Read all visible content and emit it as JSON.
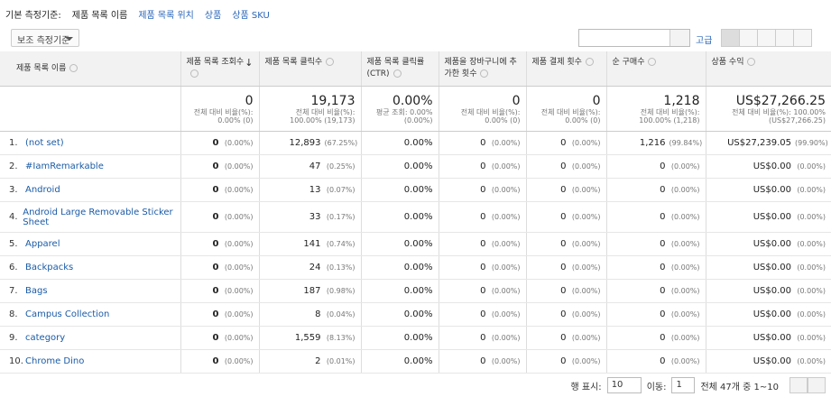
{
  "top_bar": {
    "label": "기본 측정기준:",
    "dimensions": [
      "제품 목록 이름",
      "제품 목록 위치",
      "상품",
      "상품 SKU"
    ]
  },
  "toolbar": {
    "secondary_dimension": "보조 측정기준",
    "advanced": "고급"
  },
  "table": {
    "headers": [
      "제품 목록 이름",
      "제품 목록 조회수",
      "제품 목록 클릭수",
      "제품 목록 클릭률 (CTR)",
      "제품을 장바구니에 추가한 횟수",
      "제품 결제 횟수",
      "순 구매수",
      "상품 수익"
    ],
    "totals": [
      {
        "value": "0",
        "lines": [
          "전체 대비 비율(%):",
          "0.00% (0)"
        ]
      },
      {
        "value": "19,173",
        "lines": [
          "전체 대비 비율(%):",
          "100.00% (19,173)"
        ]
      },
      {
        "value": "0.00%",
        "lines": [
          "평균 조회: 0.00%",
          "(0.00%)"
        ]
      },
      {
        "value": "0",
        "lines": [
          "전체 대비 비율(%):",
          "0.00% (0)"
        ]
      },
      {
        "value": "0",
        "lines": [
          "전체 대비 비율(%):",
          "0.00% (0)"
        ]
      },
      {
        "value": "1,218",
        "lines": [
          "전체 대비 비율(%):",
          "100.00% (1,218)"
        ]
      },
      {
        "value": "US$27,266.25",
        "lines": [
          "전체 대비 비율(%): 100.00%",
          "(US$27,266.25)"
        ]
      }
    ],
    "rows": [
      {
        "index": "1.",
        "name": "(not set)",
        "cells": [
          {
            "value": "0",
            "pct": "(0.00%)"
          },
          {
            "value": "12,893",
            "pct": "(67.25%)"
          },
          {
            "value": "0.00%"
          },
          {
            "value": "0",
            "pct": "(0.00%)"
          },
          {
            "value": "0",
            "pct": "(0.00%)"
          },
          {
            "value": "1,216",
            "pct": "(99.84%)"
          },
          {
            "value": "US$27,239.05",
            "pct": "(99.90%)"
          }
        ]
      },
      {
        "index": "2.",
        "name": "#IamRemarkable",
        "cells": [
          {
            "value": "0",
            "pct": "(0.00%)"
          },
          {
            "value": "47",
            "pct": "(0.25%)"
          },
          {
            "value": "0.00%"
          },
          {
            "value": "0",
            "pct": "(0.00%)"
          },
          {
            "value": "0",
            "pct": "(0.00%)"
          },
          {
            "value": "0",
            "pct": "(0.00%)"
          },
          {
            "value": "US$0.00",
            "pct": "(0.00%)"
          }
        ]
      },
      {
        "index": "3.",
        "name": "Android",
        "cells": [
          {
            "value": "0",
            "pct": "(0.00%)"
          },
          {
            "value": "13",
            "pct": "(0.07%)"
          },
          {
            "value": "0.00%"
          },
          {
            "value": "0",
            "pct": "(0.00%)"
          },
          {
            "value": "0",
            "pct": "(0.00%)"
          },
          {
            "value": "0",
            "pct": "(0.00%)"
          },
          {
            "value": "US$0.00",
            "pct": "(0.00%)"
          }
        ]
      },
      {
        "index": "4.",
        "name": "Android Large Removable Sticker Sheet",
        "cells": [
          {
            "value": "0",
            "pct": "(0.00%)"
          },
          {
            "value": "33",
            "pct": "(0.17%)"
          },
          {
            "value": "0.00%"
          },
          {
            "value": "0",
            "pct": "(0.00%)"
          },
          {
            "value": "0",
            "pct": "(0.00%)"
          },
          {
            "value": "0",
            "pct": "(0.00%)"
          },
          {
            "value": "US$0.00",
            "pct": "(0.00%)"
          }
        ]
      },
      {
        "index": "5.",
        "name": "Apparel",
        "cells": [
          {
            "value": "0",
            "pct": "(0.00%)"
          },
          {
            "value": "141",
            "pct": "(0.74%)"
          },
          {
            "value": "0.00%"
          },
          {
            "value": "0",
            "pct": "(0.00%)"
          },
          {
            "value": "0",
            "pct": "(0.00%)"
          },
          {
            "value": "0",
            "pct": "(0.00%)"
          },
          {
            "value": "US$0.00",
            "pct": "(0.00%)"
          }
        ]
      },
      {
        "index": "6.",
        "name": "Backpacks",
        "cells": [
          {
            "value": "0",
            "pct": "(0.00%)"
          },
          {
            "value": "24",
            "pct": "(0.13%)"
          },
          {
            "value": "0.00%"
          },
          {
            "value": "0",
            "pct": "(0.00%)"
          },
          {
            "value": "0",
            "pct": "(0.00%)"
          },
          {
            "value": "0",
            "pct": "(0.00%)"
          },
          {
            "value": "US$0.00",
            "pct": "(0.00%)"
          }
        ]
      },
      {
        "index": "7.",
        "name": "Bags",
        "cells": [
          {
            "value": "0",
            "pct": "(0.00%)"
          },
          {
            "value": "187",
            "pct": "(0.98%)"
          },
          {
            "value": "0.00%"
          },
          {
            "value": "0",
            "pct": "(0.00%)"
          },
          {
            "value": "0",
            "pct": "(0.00%)"
          },
          {
            "value": "0",
            "pct": "(0.00%)"
          },
          {
            "value": "US$0.00",
            "pct": "(0.00%)"
          }
        ]
      },
      {
        "index": "8.",
        "name": "Campus Collection",
        "cells": [
          {
            "value": "0",
            "pct": "(0.00%)"
          },
          {
            "value": "8",
            "pct": "(0.04%)"
          },
          {
            "value": "0.00%"
          },
          {
            "value": "0",
            "pct": "(0.00%)"
          },
          {
            "value": "0",
            "pct": "(0.00%)"
          },
          {
            "value": "0",
            "pct": "(0.00%)"
          },
          {
            "value": "US$0.00",
            "pct": "(0.00%)"
          }
        ]
      },
      {
        "index": "9.",
        "name": "category",
        "cells": [
          {
            "value": "0",
            "pct": "(0.00%)"
          },
          {
            "value": "1,559",
            "pct": "(8.13%)"
          },
          {
            "value": "0.00%"
          },
          {
            "value": "0",
            "pct": "(0.00%)"
          },
          {
            "value": "0",
            "pct": "(0.00%)"
          },
          {
            "value": "0",
            "pct": "(0.00%)"
          },
          {
            "value": "US$0.00",
            "pct": "(0.00%)"
          }
        ]
      },
      {
        "index": "10.",
        "name": "Chrome Dino",
        "cells": [
          {
            "value": "0",
            "pct": "(0.00%)"
          },
          {
            "value": "2",
            "pct": "(0.01%)"
          },
          {
            "value": "0.00%"
          },
          {
            "value": "0",
            "pct": "(0.00%)"
          },
          {
            "value": "0",
            "pct": "(0.00%)"
          },
          {
            "value": "0",
            "pct": "(0.00%)"
          },
          {
            "value": "US$0.00",
            "pct": "(0.00%)"
          }
        ]
      }
    ]
  },
  "footer": {
    "rows_label": "행 표시:",
    "rows_value": "10",
    "goto_label": "이동:",
    "goto_value": "1",
    "range": "전체 47개 중 1~10"
  }
}
